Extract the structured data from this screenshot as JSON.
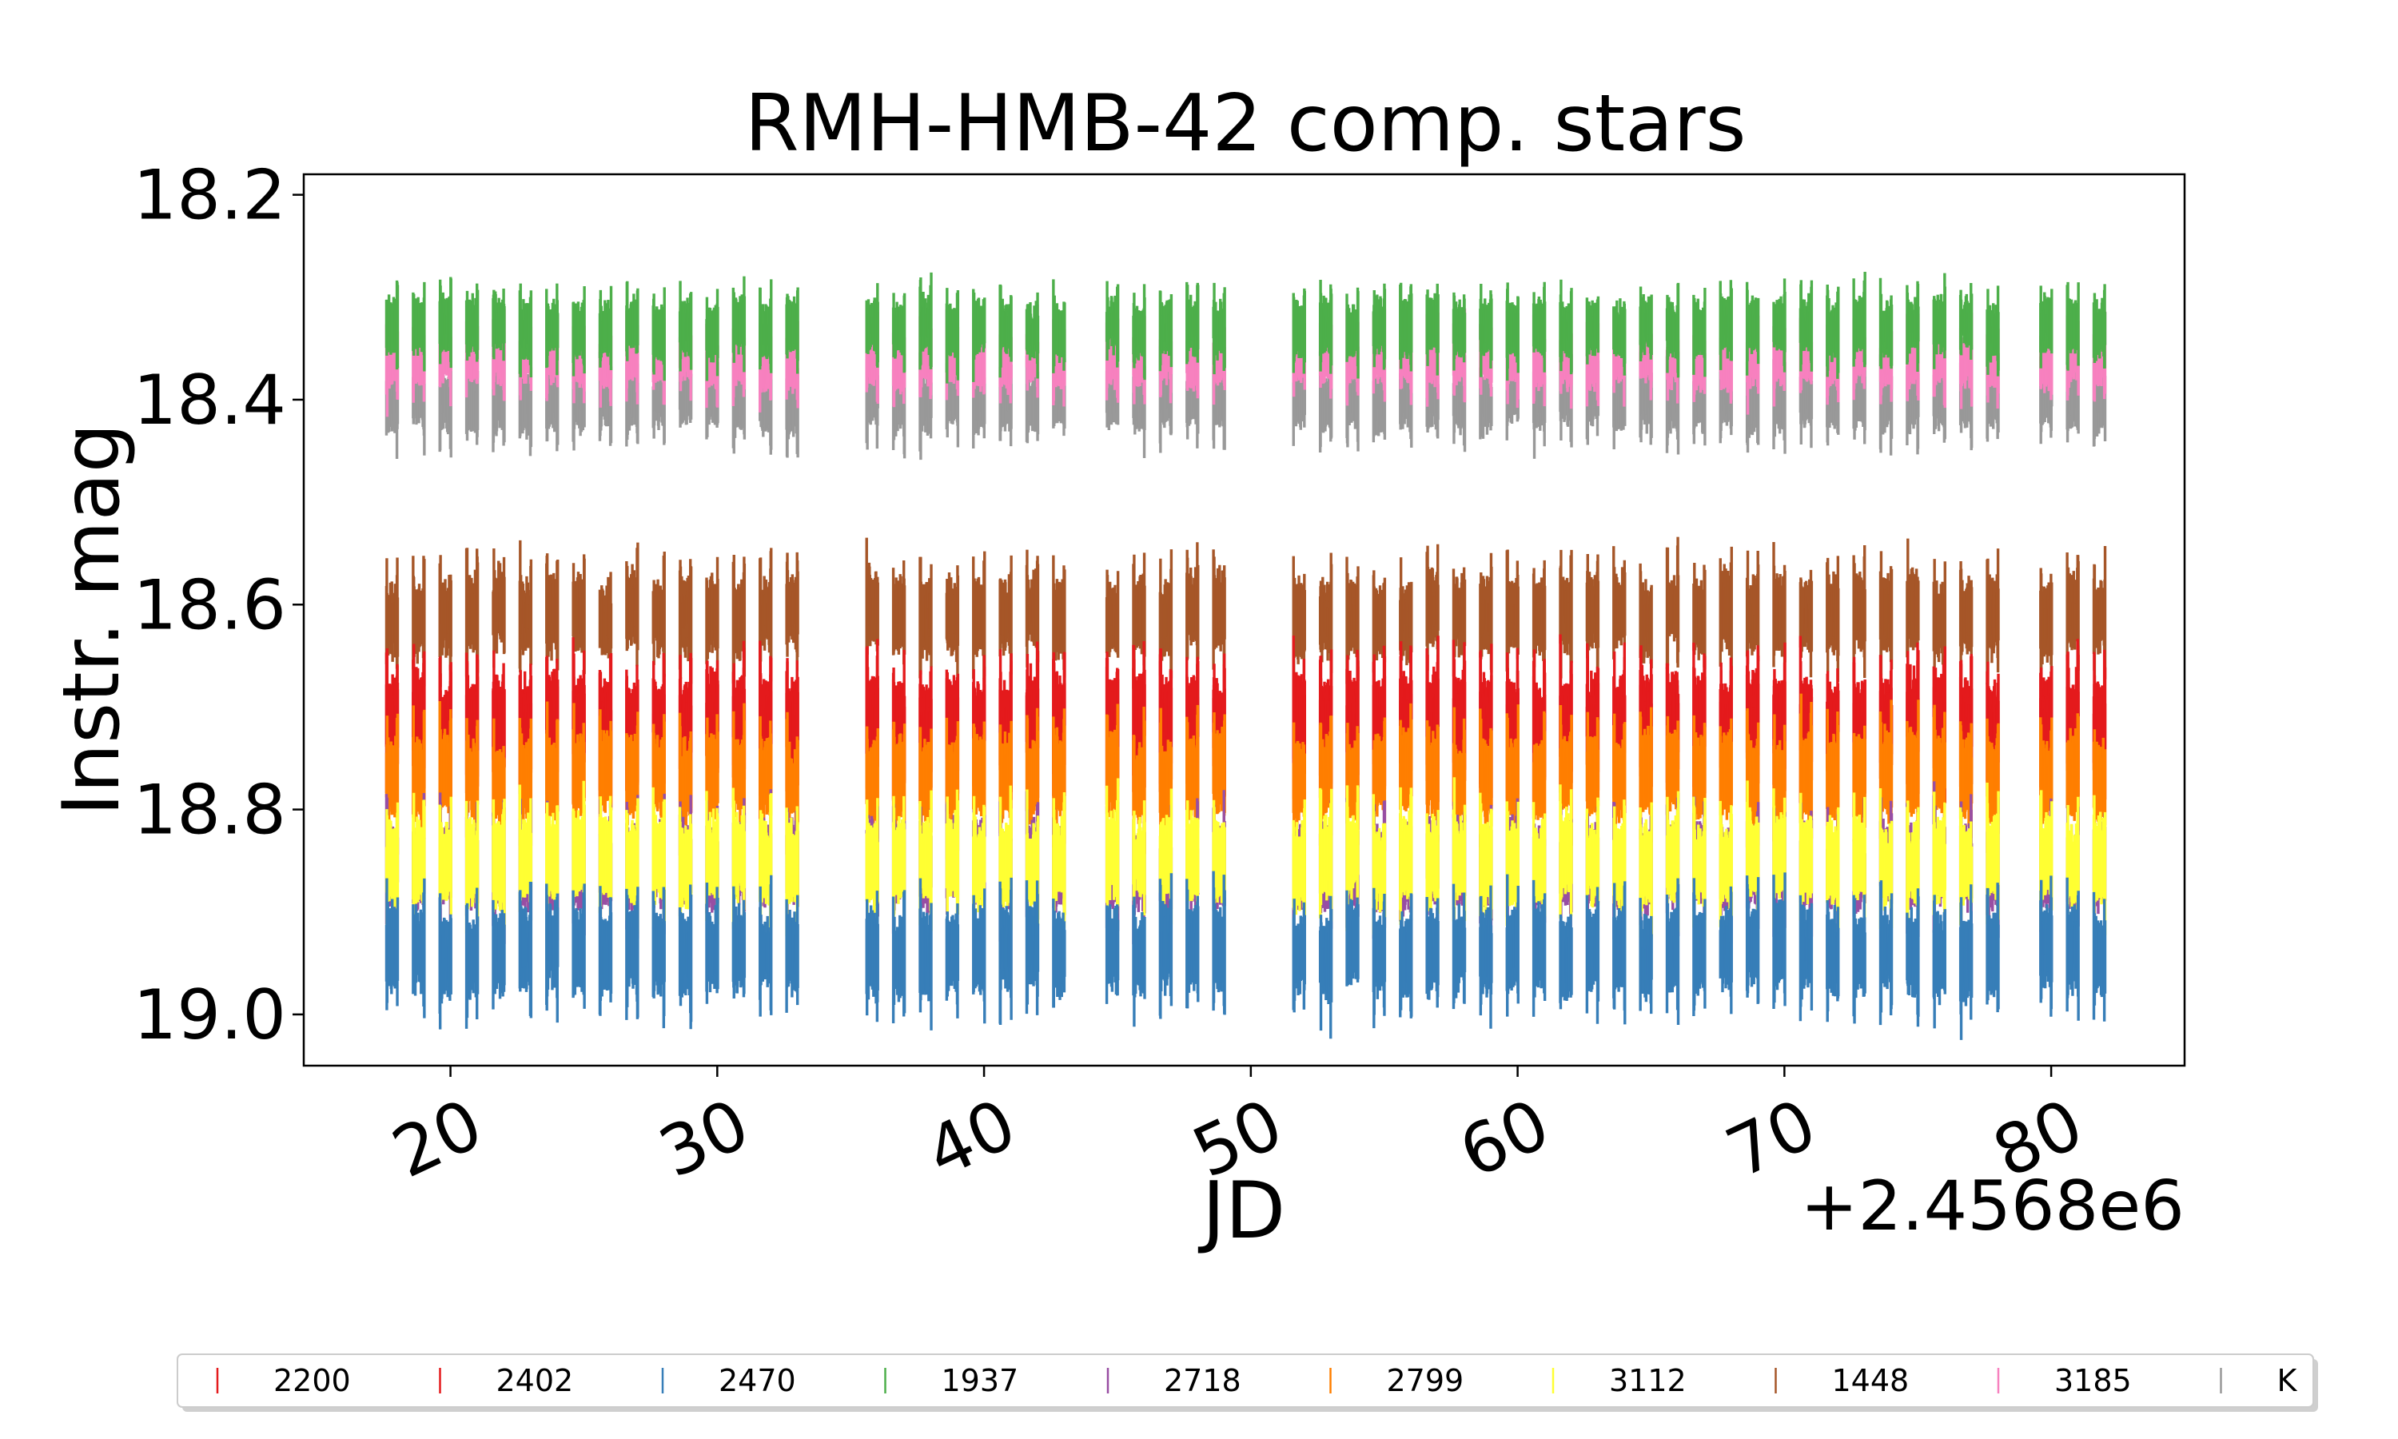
{
  "chart_data": {
    "type": "scatter",
    "title": "RMH-HMB-42 comp. stars",
    "xlabel": "JD",
    "ylabel": "Instr. mag",
    "x_offset_label": "+2.4568e6",
    "xlim": [
      14.5,
      85
    ],
    "ylim": [
      19.05,
      18.18
    ],
    "y_inverted": true,
    "xticks": [
      20,
      30,
      40,
      50,
      60,
      70,
      80
    ],
    "yticks": [
      18.2,
      18.4,
      18.6,
      18.8,
      19.0
    ],
    "xtick_labels": [
      "20",
      "30",
      "40",
      "50",
      "60",
      "70",
      "80"
    ],
    "ytick_labels": [
      "18.2",
      "18.4",
      "18.6",
      "18.8",
      "19.0"
    ],
    "grid": false,
    "legend_position": "bottom",
    "nights": [
      17.6,
      18.6,
      19.6,
      20.6,
      21.6,
      22.6,
      23.6,
      24.6,
      25.6,
      26.6,
      27.6,
      28.6,
      29.6,
      30.6,
      31.6,
      32.6,
      35.6,
      36.6,
      37.6,
      38.6,
      39.6,
      40.6,
      41.6,
      42.6,
      44.6,
      45.6,
      46.6,
      47.6,
      48.6,
      51.6,
      52.6,
      53.6,
      54.6,
      55.6,
      56.6,
      57.6,
      58.6,
      59.6,
      60.6,
      61.6,
      62.6,
      63.6,
      64.6,
      65.6,
      66.6,
      67.6,
      68.6,
      69.6,
      70.6,
      71.6,
      72.6,
      73.6,
      74.6,
      75.6,
      76.6,
      77.6,
      79.6,
      80.6,
      81.6
    ],
    "night_duration_days": 0.42,
    "series": [
      {
        "name": "2200",
        "color": "#e41a1c",
        "mean_mag": 18.72,
        "scatter": 0.035
      },
      {
        "name": "2402",
        "color": "#e41a1c",
        "mean_mag": 18.72,
        "scatter": 0.03
      },
      {
        "name": "2470",
        "color": "#377eb8",
        "mean_mag": 18.94,
        "scatter": 0.03
      },
      {
        "name": "1937",
        "color": "#4daf4a",
        "mean_mag": 18.33,
        "scatter": 0.02
      },
      {
        "name": "2718",
        "color": "#984ea3",
        "mean_mag": 18.855,
        "scatter": 0.03
      },
      {
        "name": "2799",
        "color": "#ff7f00",
        "mean_mag": 18.77,
        "scatter": 0.03
      },
      {
        "name": "3112",
        "color": "#ffff33",
        "mean_mag": 18.85,
        "scatter": 0.03
      },
      {
        "name": "1448",
        "color": "#a65628",
        "mean_mag": 18.61,
        "scatter": 0.028
      },
      {
        "name": "3185",
        "color": "#f781bf",
        "mean_mag": 18.36,
        "scatter": 0.02
      },
      {
        "name": "K",
        "color": "#999999",
        "mean_mag": 18.4,
        "scatter": 0.022
      }
    ]
  }
}
